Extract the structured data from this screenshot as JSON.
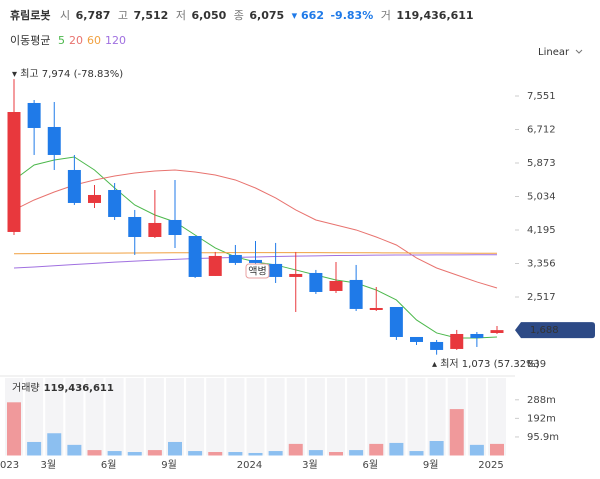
{
  "header": {
    "name": "휴림로봇",
    "fields": [
      [
        "시",
        "6,787"
      ],
      [
        "고",
        "7,512"
      ],
      [
        "저",
        "6,050"
      ],
      [
        "종",
        "6,075"
      ]
    ],
    "change": "▾ 662",
    "change_pct": "-9.83%",
    "volume_label": "거",
    "volume": "119,436,611"
  },
  "chart_data": {
    "type": "candlestick",
    "scale_label": "Linear",
    "ma_label": "이동평균",
    "categories": [
      "023",
      null,
      "3월",
      null,
      null,
      "6월",
      null,
      null,
      "9월",
      null,
      null,
      null,
      "2024",
      null,
      null,
      "3월",
      null,
      null,
      "6월",
      null,
      null,
      "9월",
      null,
      null,
      "2025"
    ],
    "open": [
      4146,
      7376,
      6775,
      5698,
      4872,
      5197,
      4521,
      4020,
      4446,
      4045,
      3044,
      3570,
      3445,
      3345,
      3019,
      3119,
      2668,
      2944,
      2192,
      2267,
      1516,
      1391,
      1216,
      1591,
      1616
    ],
    "high": [
      7974,
      7451,
      7401,
      6074,
      5322,
      5372,
      4697,
      5197,
      5448,
      4045,
      3645,
      3820,
      3921,
      3871,
      3645,
      3195,
      3395,
      3320,
      2768,
      2267,
      1516,
      1441,
      1692,
      1641,
      1792
    ],
    "low": [
      4070,
      6074,
      5698,
      4822,
      4747,
      4446,
      3570,
      3995,
      3745,
      2994,
      3044,
      3320,
      3195,
      2868,
      2142,
      2593,
      2618,
      2167,
      2167,
      1441,
      1316,
      1073,
      1191,
      1266,
      1591
    ],
    "close": [
      7150,
      6750,
      6074,
      4872,
      5072,
      4521,
      4020,
      4371,
      4070,
      3019,
      3545,
      3370,
      3370,
      3019,
      3094,
      2643,
      2919,
      2218,
      2242,
      1516,
      1391,
      1191,
      1591,
      1491,
      1688
    ],
    "up_color": "#e8383d",
    "down_color": "#1f7ae8",
    "ylim": [
      639,
      8202
    ],
    "yticks": [
      {
        "value": 7551,
        "label": "7,551"
      },
      {
        "value": 6712,
        "label": "6,712"
      },
      {
        "value": 5873,
        "label": "5,873"
      },
      {
        "value": 5034,
        "label": "5,034"
      },
      {
        "value": 4195,
        "label": "4,195"
      },
      {
        "value": 3356,
        "label": "3,356"
      },
      {
        "value": 2517,
        "label": "2,517"
      },
      {
        "value": 839,
        "label": "839"
      }
    ],
    "last_price": {
      "value": 1688,
      "label": "1,688"
    },
    "high_note": {
      "value": 7974,
      "label": "▾ 최고 7,974 (-78.83%)"
    },
    "low_note": {
      "value": 1073,
      "label": "▴ 최저 1,073 (57.32%)"
    },
    "event_tag": "액병",
    "series": [
      {
        "name": "5",
        "color": "#4cb84c",
        "values": [
          5448,
          5823,
          5948,
          6024,
          5698,
          5247,
          4822,
          4571,
          4396,
          4070,
          3745,
          3520,
          3395,
          3320,
          3195,
          3069,
          2944,
          2868,
          2693,
          2443,
          1942,
          1617,
          1491,
          1491,
          1516
        ]
      },
      {
        "name": "20",
        "color": "#e8736f",
        "values": [
          4697,
          4947,
          5147,
          5322,
          5448,
          5548,
          5623,
          5673,
          5698,
          5648,
          5573,
          5448,
          5247,
          4997,
          4697,
          4446,
          4321,
          4196,
          4020,
          3820,
          3495,
          3244,
          3069,
          2894,
          2743
        ]
      },
      {
        "name": "60",
        "color": "#f0a040",
        "values": [
          3600,
          3605,
          3610,
          3612,
          3615,
          3617,
          3620,
          3622,
          3624,
          3625,
          3626,
          3627,
          3628,
          3628,
          3628,
          3627,
          3626,
          3625,
          3624,
          3622,
          3620,
          3618,
          3616,
          3614,
          3612
        ]
      },
      {
        "name": "120",
        "color": "#a070e0",
        "values": [
          3245,
          3270,
          3300,
          3330,
          3360,
          3390,
          3415,
          3440,
          3460,
          3480,
          3495,
          3510,
          3520,
          3530,
          3540,
          3548,
          3555,
          3560,
          3565,
          3568,
          3570,
          3572,
          3573,
          3574,
          3575
        ]
      }
    ],
    "volume_label": "거래량",
    "volume_total": "119,436,611",
    "volume": [
      275000000,
      70000000,
      115000000,
      55000000,
      28000000,
      23000000,
      18000000,
      28000000,
      70000000,
      23000000,
      18000000,
      18000000,
      13000000,
      23000000,
      60000000,
      28000000,
      18000000,
      28000000,
      60000000,
      65000000,
      23000000,
      75000000,
      240000000,
      55000000,
      60000000
    ],
    "volume_up_color": "#f0999b",
    "volume_down_color": "#8cbff0",
    "volume_ylim": [
      0,
      380000000
    ],
    "volume_ticks": [
      {
        "value": 288000000,
        "label": "288m"
      },
      {
        "value": 192000000,
        "label": "192m"
      },
      {
        "value": 95900000,
        "label": "95.9m"
      }
    ]
  }
}
